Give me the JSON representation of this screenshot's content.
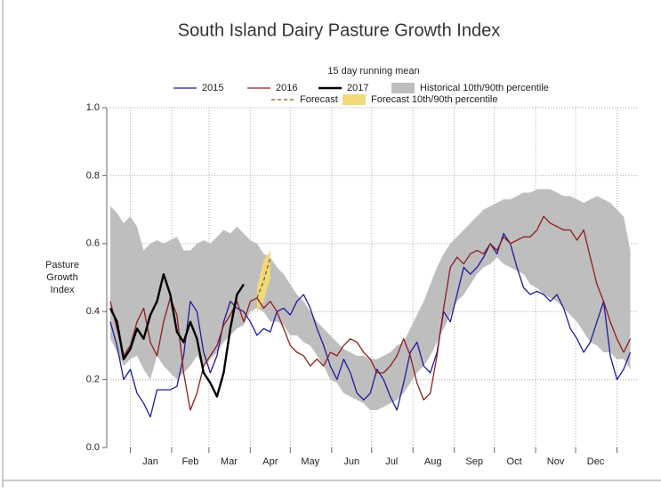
{
  "chart_data": {
    "type": "line",
    "title": "South Island Dairy Pasture Growth Index",
    "subtitle": "15 day running mean",
    "y_label": [
      "Pasture",
      "Growth",
      "Index"
    ],
    "xlim": [
      -15,
      380
    ],
    "ylim": [
      0,
      1
    ],
    "yticks": [
      {
        "value": 0,
        "label": "0.0"
      },
      {
        "value": 0.2,
        "label": "0.2"
      },
      {
        "value": 0.4,
        "label": "0.4"
      },
      {
        "value": 0.6,
        "label": "0.6"
      },
      {
        "value": 0.8,
        "label": "0.8"
      },
      {
        "value": 1,
        "label": "1.0"
      }
    ],
    "xticks": [
      {
        "value": 15,
        "label": "Jan"
      },
      {
        "value": 45,
        "label": "Feb"
      },
      {
        "value": 74,
        "label": "Mar"
      },
      {
        "value": 105,
        "label": "Apr"
      },
      {
        "value": 135,
        "label": "May"
      },
      {
        "value": 166,
        "label": "Jun"
      },
      {
        "value": 196,
        "label": "Jul"
      },
      {
        "value": 227,
        "label": "Aug"
      },
      {
        "value": 258,
        "label": "Sep"
      },
      {
        "value": 288,
        "label": "Oct"
      },
      {
        "value": 319,
        "label": "Nov"
      },
      {
        "value": 349,
        "label": "Dec"
      }
    ],
    "xgrid": [
      0,
      31,
      59,
      90,
      120,
      151,
      181,
      212,
      243,
      273,
      304,
      334,
      365
    ],
    "grid": true,
    "x": [
      -15,
      -10,
      -5,
      0,
      5,
      10,
      15,
      20,
      25,
      30,
      35,
      40,
      45,
      50,
      55,
      60,
      65,
      70,
      75,
      80,
      85,
      90,
      95,
      100,
      105,
      110,
      115,
      120,
      125,
      130,
      135,
      140,
      145,
      150,
      155,
      160,
      165,
      170,
      175,
      180,
      185,
      190,
      195,
      200,
      205,
      210,
      215,
      220,
      225,
      230,
      235,
      240,
      245,
      250,
      255,
      260,
      265,
      270,
      275,
      280,
      285,
      290,
      295,
      300,
      305,
      310,
      315,
      320,
      325,
      330,
      335,
      340,
      345,
      350,
      355,
      360,
      365,
      370,
      375
    ],
    "bands": [
      {
        "name": "Historical 10th/90th percentile",
        "color": "#bebebe",
        "upper": [
          0.71,
          0.69,
          0.66,
          0.68,
          0.65,
          0.58,
          0.6,
          0.61,
          0.6,
          0.61,
          0.62,
          0.58,
          0.58,
          0.6,
          0.61,
          0.6,
          0.62,
          0.64,
          0.63,
          0.65,
          0.63,
          0.61,
          0.6,
          0.57,
          0.56,
          0.53,
          0.51,
          0.48,
          0.45,
          0.43,
          0.4,
          0.37,
          0.35,
          0.33,
          0.31,
          0.29,
          0.28,
          0.27,
          0.27,
          0.26,
          0.26,
          0.27,
          0.28,
          0.3,
          0.31,
          0.35,
          0.39,
          0.43,
          0.48,
          0.53,
          0.57,
          0.6,
          0.62,
          0.64,
          0.66,
          0.68,
          0.7,
          0.71,
          0.72,
          0.73,
          0.73,
          0.74,
          0.75,
          0.75,
          0.76,
          0.76,
          0.76,
          0.75,
          0.74,
          0.74,
          0.73,
          0.72,
          0.73,
          0.74,
          0.73,
          0.72,
          0.7,
          0.68,
          0.58
        ],
        "lower": [
          0.32,
          0.28,
          0.24,
          0.26,
          0.27,
          0.23,
          0.2,
          0.27,
          0.24,
          0.22,
          0.2,
          0.22,
          0.24,
          0.27,
          0.24,
          0.26,
          0.28,
          0.31,
          0.33,
          0.35,
          0.36,
          0.4,
          0.41,
          0.4,
          0.37,
          0.37,
          0.36,
          0.33,
          0.33,
          0.31,
          0.3,
          0.27,
          0.24,
          0.2,
          0.19,
          0.16,
          0.15,
          0.14,
          0.13,
          0.11,
          0.11,
          0.12,
          0.13,
          0.14,
          0.16,
          0.19,
          0.22,
          0.24,
          0.27,
          0.31,
          0.35,
          0.39,
          0.43,
          0.45,
          0.48,
          0.51,
          0.53,
          0.54,
          0.56,
          0.54,
          0.53,
          0.52,
          0.51,
          0.48,
          0.47,
          0.45,
          0.44,
          0.43,
          0.41,
          0.39,
          0.37,
          0.34,
          0.31,
          0.3,
          0.28,
          0.28,
          0.26,
          0.26,
          0.23
        ]
      },
      {
        "name": "Forecast 10th/90th percentile",
        "color": "#f1d97a",
        "x": [
          95,
          100,
          105
        ],
        "upper": [
          0.47,
          0.55,
          0.58
        ],
        "lower": [
          0.4,
          0.43,
          0.5
        ]
      }
    ],
    "series": [
      {
        "name": "2015",
        "color": "#1c1c9c",
        "values": [
          0.37,
          0.3,
          0.2,
          0.23,
          0.16,
          0.13,
          0.09,
          0.17,
          0.17,
          0.17,
          0.18,
          0.27,
          0.43,
          0.4,
          0.28,
          0.22,
          0.27,
          0.37,
          0.43,
          0.41,
          0.4,
          0.37,
          0.33,
          0.35,
          0.34,
          0.4,
          0.41,
          0.39,
          0.43,
          0.45,
          0.41,
          0.35,
          0.3,
          0.24,
          0.2,
          0.26,
          0.22,
          0.16,
          0.14,
          0.16,
          0.23,
          0.2,
          0.15,
          0.11,
          0.19,
          0.28,
          0.31,
          0.24,
          0.22,
          0.28,
          0.4,
          0.37,
          0.45,
          0.53,
          0.51,
          0.53,
          0.56,
          0.6,
          0.57,
          0.63,
          0.6,
          0.53,
          0.47,
          0.45,
          0.46,
          0.45,
          0.43,
          0.45,
          0.41,
          0.35,
          0.32,
          0.28,
          0.31,
          0.37,
          0.43,
          0.27,
          0.2,
          0.23,
          0.28
        ]
      },
      {
        "name": "2016",
        "color": "#8e1d1d",
        "values": [
          0.43,
          0.35,
          0.27,
          0.3,
          0.37,
          0.41,
          0.31,
          0.27,
          0.37,
          0.44,
          0.39,
          0.22,
          0.11,
          0.16,
          0.24,
          0.27,
          0.3,
          0.36,
          0.39,
          0.43,
          0.37,
          0.43,
          0.44,
          0.41,
          0.43,
          0.4,
          0.35,
          0.3,
          0.28,
          0.27,
          0.24,
          0.26,
          0.24,
          0.28,
          0.27,
          0.3,
          0.32,
          0.31,
          0.28,
          0.26,
          0.22,
          0.22,
          0.24,
          0.27,
          0.32,
          0.27,
          0.19,
          0.14,
          0.16,
          0.27,
          0.41,
          0.53,
          0.56,
          0.54,
          0.57,
          0.58,
          0.57,
          0.6,
          0.58,
          0.62,
          0.6,
          0.61,
          0.62,
          0.62,
          0.64,
          0.68,
          0.66,
          0.65,
          0.64,
          0.64,
          0.61,
          0.64,
          0.56,
          0.48,
          0.43,
          0.37,
          0.32,
          0.28,
          0.32
        ]
      },
      {
        "name": "2017",
        "color": "#000000",
        "width": 2.4,
        "x": [
          -15,
          -10,
          -5,
          0,
          5,
          10,
          15,
          20,
          25,
          30,
          35,
          40,
          45,
          50,
          55,
          60,
          65,
          70,
          75,
          80,
          85
        ],
        "values": [
          0.41,
          0.37,
          0.26,
          0.29,
          0.35,
          0.32,
          0.39,
          0.43,
          0.51,
          0.45,
          0.34,
          0.31,
          0.37,
          0.32,
          0.22,
          0.19,
          0.15,
          0.22,
          0.35,
          0.45,
          0.48
        ]
      },
      {
        "name": "Forecast",
        "color": "#7a5a1a",
        "dash": true,
        "x": [
          95,
          100,
          105
        ],
        "values": [
          0.44,
          0.49,
          0.56
        ]
      }
    ]
  }
}
